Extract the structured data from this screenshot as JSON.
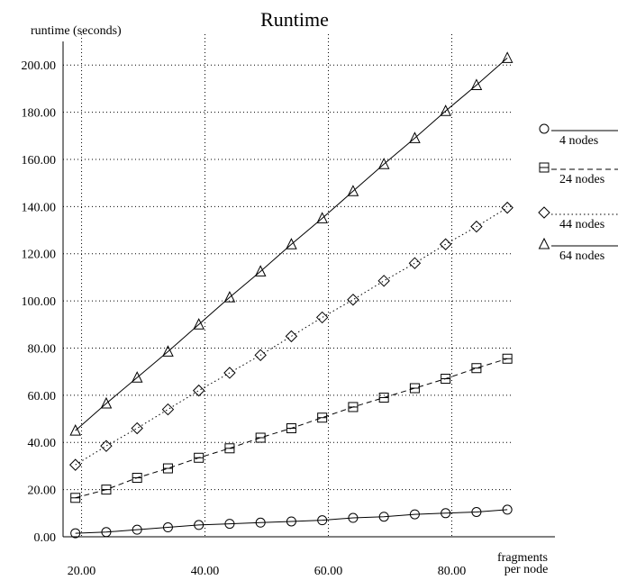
{
  "chart_data": {
    "type": "line",
    "title": "Runtime",
    "ylabel": "runtime (seconds)",
    "xlabel_line1": "fragments",
    "xlabel_line2": "per node",
    "xlim": [
      17,
      90
    ],
    "ylim": [
      0,
      210
    ],
    "x_ticks": [
      20,
      40,
      60,
      80
    ],
    "x_tick_labels": [
      "20.00",
      "40.00",
      "60.00",
      "80.00"
    ],
    "y_ticks": [
      0,
      20,
      40,
      60,
      80,
      100,
      120,
      140,
      160,
      180,
      200
    ],
    "y_tick_labels": [
      "0.00",
      "20.00",
      "40.00",
      "60.00",
      "80.00",
      "100.00",
      "120.00",
      "140.00",
      "160.00",
      "180.00",
      "200.00"
    ],
    "grid": true,
    "legend_position": "right",
    "x": [
      19,
      24,
      29,
      34,
      39,
      44,
      49,
      54,
      59,
      64,
      69,
      74,
      79,
      84,
      89
    ],
    "series": [
      {
        "name": "4 nodes",
        "marker": "circle",
        "line_style": "solid",
        "values": [
          1.5,
          2,
          3,
          4,
          5,
          5.5,
          6,
          6.5,
          7,
          8,
          8.5,
          9.5,
          10,
          10.5,
          11.5
        ]
      },
      {
        "name": "24 nodes",
        "marker": "square",
        "line_style": "dashed",
        "values": [
          16.5,
          20,
          25,
          29,
          33.5,
          37.5,
          42,
          46,
          50.5,
          55,
          59,
          63,
          67,
          71.5,
          75.5
        ]
      },
      {
        "name": "44 nodes",
        "marker": "diamond",
        "line_style": "dotted",
        "values": [
          30.5,
          38.5,
          46,
          54,
          62,
          69.5,
          77,
          85,
          93,
          100.5,
          108.5,
          116,
          124,
          131.5,
          139.5
        ]
      },
      {
        "name": "64 nodes",
        "marker": "triangle",
        "line_style": "solid",
        "values": [
          45,
          56.5,
          67.5,
          78.5,
          90,
          101.5,
          112.5,
          124,
          135,
          146.5,
          158,
          169,
          180.5,
          191.5,
          203
        ]
      }
    ]
  }
}
